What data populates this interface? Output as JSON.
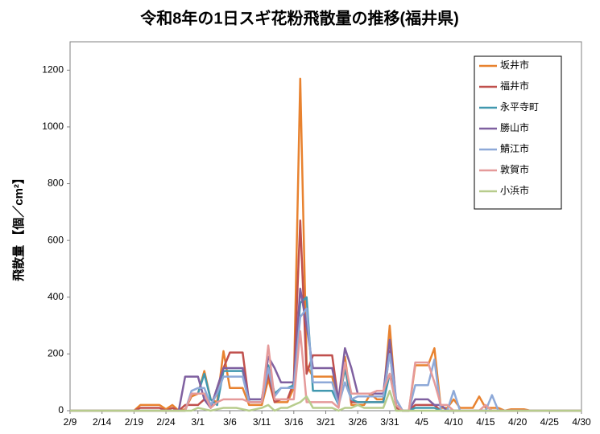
{
  "chart_data": {
    "type": "line",
    "title": "令和8年の1日スギ花粉飛散量の推移(福井県)",
    "y_label": "飛散量 【個／cm²】",
    "categories": [
      "2/9",
      null,
      null,
      null,
      null,
      "2/14",
      null,
      null,
      null,
      null,
      "2/19",
      null,
      null,
      null,
      null,
      "2/24",
      null,
      null,
      null,
      null,
      "3/1",
      null,
      null,
      null,
      null,
      "3/6",
      null,
      null,
      null,
      null,
      "3/11",
      null,
      null,
      null,
      null,
      "3/16",
      null,
      null,
      null,
      null,
      "3/21",
      null,
      null,
      null,
      null,
      "3/26",
      null,
      null,
      null,
      null,
      "3/31",
      null,
      null,
      null,
      null,
      "4/5",
      null,
      null,
      null,
      null,
      "4/10",
      null,
      null,
      null,
      null,
      "4/15",
      null,
      null,
      null,
      null,
      "4/20",
      null,
      null,
      null,
      null,
      "4/25",
      null,
      null,
      null,
      null,
      "4/30"
    ],
    "ylim": [
      0,
      1300
    ],
    "yticks": [
      0,
      200,
      400,
      600,
      800,
      1000,
      1200
    ],
    "grid": false,
    "legend": "upper right",
    "series": [
      {
        "name": "坂井市",
        "color": "#e8822f",
        "values": [
          0,
          0,
          0,
          0,
          0,
          0,
          0,
          0,
          0,
          0,
          0,
          20,
          20,
          20,
          20,
          5,
          20,
          0,
          5,
          50,
          60,
          140,
          40,
          30,
          210,
          80,
          80,
          80,
          20,
          20,
          20,
          110,
          30,
          30,
          30,
          80,
          1170,
          160,
          120,
          120,
          120,
          120,
          20,
          190,
          20,
          20,
          20,
          60,
          40,
          40,
          300,
          20,
          0,
          0,
          160,
          160,
          160,
          220,
          10,
          10,
          40,
          10,
          10,
          10,
          50,
          10,
          10,
          10,
          0,
          5,
          5,
          5,
          0,
          0,
          0,
          0,
          0,
          0,
          0,
          0,
          0
        ]
      },
      {
        "name": "福井市",
        "color": "#c0504d",
        "values": [
          0,
          0,
          0,
          0,
          0,
          0,
          0,
          0,
          0,
          0,
          0,
          10,
          10,
          10,
          10,
          0,
          10,
          0,
          20,
          20,
          20,
          40,
          10,
          80,
          150,
          205,
          205,
          205,
          30,
          30,
          30,
          130,
          30,
          40,
          40,
          100,
          670,
          130,
          195,
          195,
          195,
          195,
          30,
          150,
          30,
          30,
          30,
          30,
          30,
          30,
          210,
          10,
          0,
          0,
          20,
          20,
          20,
          20,
          0,
          0,
          0,
          0,
          0,
          0,
          0,
          0,
          0,
          0,
          0,
          0,
          0,
          0,
          0,
          0,
          0,
          0,
          0,
          0,
          0,
          0,
          0
        ]
      },
      {
        "name": "永平寺町",
        "color": "#4198af",
        "values": [
          0,
          0,
          0,
          0,
          0,
          0,
          0,
          0,
          0,
          0,
          0,
          0,
          0,
          0,
          0,
          0,
          0,
          0,
          0,
          60,
          60,
          130,
          40,
          20,
          140,
          140,
          140,
          140,
          40,
          40,
          40,
          160,
          60,
          80,
          80,
          90,
          380,
          400,
          70,
          70,
          70,
          70,
          20,
          150,
          40,
          30,
          30,
          30,
          30,
          30,
          130,
          20,
          0,
          0,
          10,
          10,
          10,
          10,
          0,
          0,
          0,
          0,
          0,
          0,
          0,
          0,
          0,
          0,
          0,
          0,
          0,
          0,
          0,
          0,
          0,
          0,
          0,
          0,
          0,
          0,
          0
        ]
      },
      {
        "name": "勝山市",
        "color": "#7f60a0",
        "values": [
          0,
          0,
          0,
          0,
          0,
          0,
          0,
          0,
          0,
          0,
          0,
          0,
          0,
          0,
          0,
          0,
          0,
          0,
          120,
          120,
          120,
          40,
          10,
          80,
          150,
          150,
          150,
          150,
          40,
          40,
          40,
          190,
          150,
          100,
          100,
          100,
          430,
          300,
          150,
          150,
          150,
          150,
          40,
          220,
          150,
          60,
          60,
          60,
          60,
          60,
          250,
          40,
          0,
          0,
          40,
          40,
          40,
          20,
          20,
          0,
          0,
          0,
          0,
          0,
          0,
          0,
          0,
          0,
          0,
          0,
          0,
          0,
          0,
          0,
          0,
          0,
          0,
          0,
          0,
          0,
          0
        ]
      },
      {
        "name": "鯖江市",
        "color": "#8ea9d8",
        "values": [
          0,
          0,
          0,
          0,
          0,
          0,
          0,
          0,
          0,
          0,
          0,
          0,
          0,
          0,
          0,
          0,
          0,
          0,
          0,
          70,
          80,
          80,
          20,
          60,
          120,
          120,
          120,
          120,
          30,
          30,
          30,
          150,
          50,
          80,
          80,
          80,
          330,
          360,
          100,
          100,
          100,
          100,
          20,
          100,
          40,
          50,
          50,
          50,
          50,
          50,
          200,
          40,
          0,
          0,
          90,
          90,
          90,
          180,
          0,
          0,
          70,
          0,
          0,
          0,
          0,
          0,
          55,
          0,
          0,
          0,
          0,
          0,
          0,
          0,
          0,
          0,
          0,
          0,
          0,
          0,
          0
        ]
      },
      {
        "name": "敦賀市",
        "color": "#e59a9a",
        "values": [
          0,
          0,
          0,
          0,
          0,
          0,
          0,
          0,
          0,
          0,
          0,
          0,
          0,
          0,
          0,
          0,
          0,
          0,
          0,
          60,
          60,
          60,
          10,
          30,
          40,
          40,
          40,
          40,
          30,
          30,
          30,
          230,
          40,
          40,
          40,
          40,
          280,
          30,
          30,
          30,
          30,
          30,
          10,
          170,
          60,
          60,
          60,
          60,
          70,
          70,
          130,
          20,
          0,
          0,
          170,
          170,
          170,
          100,
          20,
          20,
          0,
          0,
          0,
          0,
          0,
          20,
          0,
          0,
          0,
          0,
          0,
          0,
          0,
          0,
          0,
          0,
          0,
          0,
          0,
          0,
          0
        ]
      },
      {
        "name": "小浜市",
        "color": "#b7cc8c",
        "values": [
          0,
          0,
          0,
          0,
          0,
          0,
          0,
          0,
          0,
          0,
          0,
          0,
          0,
          0,
          0,
          0,
          0,
          0,
          0,
          0,
          10,
          5,
          0,
          5,
          10,
          10,
          10,
          5,
          0,
          5,
          10,
          20,
          0,
          10,
          10,
          20,
          30,
          50,
          10,
          10,
          10,
          10,
          0,
          10,
          10,
          20,
          10,
          10,
          10,
          10,
          70,
          0,
          0,
          0,
          0,
          0,
          0,
          0,
          0,
          0,
          0,
          0,
          0,
          0,
          0,
          0,
          0,
          0,
          0,
          0,
          0,
          0,
          0,
          0,
          0,
          0,
          0,
          0,
          0,
          0,
          0
        ]
      }
    ]
  }
}
